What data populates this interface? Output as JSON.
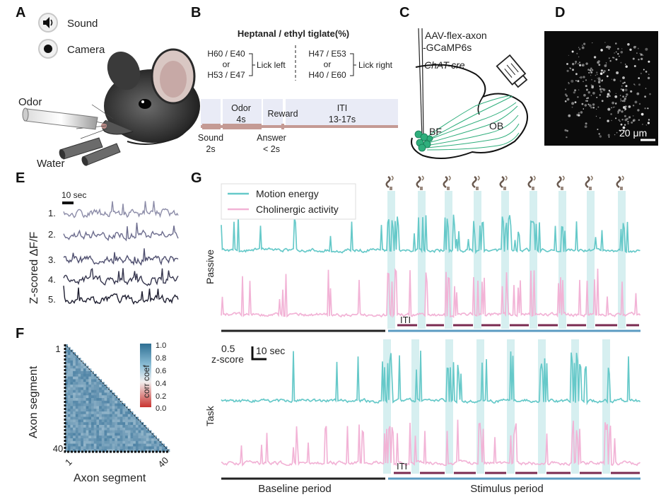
{
  "panels": {
    "A": "A",
    "B": "B",
    "C": "C",
    "D": "D",
    "E": "E",
    "F": "F",
    "G": "G"
  },
  "panelA": {
    "sound": "Sound",
    "camera": "Camera",
    "odor": "Odor",
    "water": "Water"
  },
  "panelB": {
    "title": "Heptanal / ethyl tiglate(%)",
    "left": {
      "line1": "H60 / E40",
      "or": "or",
      "line2": "H53 / E47",
      "result": "Lick left"
    },
    "right": {
      "line1": "H47 / E53",
      "or": "or",
      "line2": "H40 / E60",
      "result": "Lick right"
    },
    "timeline": {
      "sound": "Sound",
      "sound_dur": "2s",
      "odor": "Odor",
      "odor_dur": "4s",
      "reward": "Reward",
      "answer": "Answer",
      "answer_dur": "< 2s",
      "iti": "ITI",
      "iti_dur": "13-17s"
    }
  },
  "panelC": {
    "virus1": "AAV-flex-axon",
    "virus2": "-GCaMP6s",
    "mouse_line": "ChAT-cre",
    "bf": "BF",
    "ob": "OB"
  },
  "panelD": {
    "scale": "20 μm"
  },
  "panelE": {
    "scale": "10 sec",
    "ylabel": "Z-scored ΔF/F",
    "traces": [
      "1.",
      "2.",
      "3.",
      "4.",
      "5."
    ]
  },
  "panelF": {
    "xlabel": "Axon segment",
    "ylabel": "Axon segment",
    "x_ticks": [
      "1",
      "40"
    ],
    "y_ticks": [
      "1",
      "40"
    ],
    "colorbar_label": "corr coef",
    "colorbar_ticks": [
      "1.0",
      "0.8",
      "0.6",
      "0.4",
      "0.2",
      "0.0"
    ]
  },
  "panelG": {
    "legend": [
      "Motion energy",
      "Cholinergic activity"
    ],
    "rows": [
      "Passive",
      "Task"
    ],
    "iti": "ITI",
    "scale_y": "0.5",
    "scale_y_unit": "z-score",
    "scale_x": "10 sec",
    "periods": [
      "Baseline period",
      "Stimulus period"
    ]
  },
  "colors": {
    "motion": "#66c9c9",
    "cholinergic": "#f2b3d6",
    "trial_bar": "#7a2a50",
    "stimulus_band": "#d6eff0",
    "stimulus_line": "#5b9bc2",
    "baseline_line": "#222222",
    "trial_timeline": "#c49a94",
    "bf_neurons": "#2fae7c"
  }
}
